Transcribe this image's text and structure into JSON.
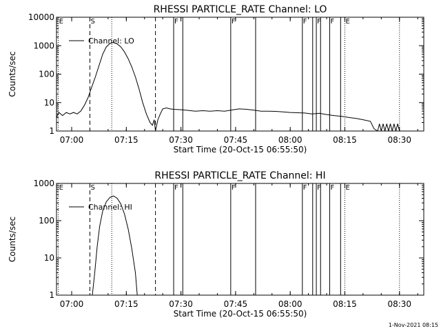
{
  "footer": {
    "date_stamp": "1-Nov-2021 08:15"
  },
  "chart_data": [
    {
      "type": "line",
      "title": "RHESSI PARTICLE_RATE Channel: LO",
      "xlabel": "Start Time (20-Oct-15 06:55:50)",
      "ylabel": "Counts/sec",
      "yscale": "log",
      "xlim": [
        "06:55:50",
        "08:36:40"
      ],
      "ylim": [
        1,
        10000
      ],
      "x_ticks": [
        "07:00",
        "07:15",
        "07:30",
        "07:45",
        "08:00",
        "08:15",
        "08:30"
      ],
      "y_ticks": [
        "1",
        "10",
        "100",
        "1000",
        "10000"
      ],
      "legend": {
        "position": "top-left",
        "label": "Channel: LO"
      },
      "grid": false,
      "markers": [
        {
          "time": "06:56:20",
          "label": "E",
          "style": "dotted"
        },
        {
          "time": "07:05:00",
          "label": "S",
          "style": "dashed"
        },
        {
          "time": "07:11:00",
          "label": "",
          "style": "dotted"
        },
        {
          "time": "07:23:00",
          "label": "",
          "style": "dashed"
        },
        {
          "time": "07:28:00",
          "label": "F",
          "style": "solid"
        },
        {
          "time": "07:30:30",
          "label": "",
          "style": "solid"
        },
        {
          "time": "07:43:40",
          "label": "F",
          "style": "solid"
        },
        {
          "time": "07:50:30",
          "label": "",
          "style": "solid"
        },
        {
          "time": "08:03:20",
          "label": "F",
          "style": "solid"
        },
        {
          "time": "08:06:10",
          "label": "",
          "style": "solid"
        },
        {
          "time": "08:07:10",
          "label": "F",
          "style": "solid"
        },
        {
          "time": "08:08:20",
          "label": "",
          "style": "solid"
        },
        {
          "time": "08:10:50",
          "label": "F",
          "style": "solid"
        },
        {
          "time": "08:13:50",
          "label": "",
          "style": "solid"
        },
        {
          "time": "08:15:00",
          "label": "E",
          "style": "dotted"
        },
        {
          "time": "08:30:00",
          "label": "",
          "style": "dotted"
        }
      ],
      "series": [
        {
          "name": "Channel: LO",
          "points": [
            [
              "06:55:50",
              3
            ],
            [
              "06:56:30",
              4.5
            ],
            [
              "06:57:30",
              3.5
            ],
            [
              "06:58:30",
              4.5
            ],
            [
              "06:59:30",
              4
            ],
            [
              "07:00:30",
              4.5
            ],
            [
              "07:01:30",
              4
            ],
            [
              "07:02:30",
              5
            ],
            [
              "07:03:30",
              8
            ],
            [
              "07:04:30",
              15
            ],
            [
              "07:05:30",
              35
            ],
            [
              "07:06:30",
              80
            ],
            [
              "07:07:30",
              200
            ],
            [
              "07:08:30",
              500
            ],
            [
              "07:09:30",
              900
            ],
            [
              "07:10:30",
              1200
            ],
            [
              "07:11:30",
              1300
            ],
            [
              "07:12:30",
              1150
            ],
            [
              "07:13:30",
              900
            ],
            [
              "07:14:30",
              600
            ],
            [
              "07:15:30",
              350
            ],
            [
              "07:16:30",
              180
            ],
            [
              "07:17:30",
              80
            ],
            [
              "07:18:30",
              30
            ],
            [
              "07:19:30",
              10
            ],
            [
              "07:20:30",
              4
            ],
            [
              "07:21:30",
              2
            ],
            [
              "07:22:10",
              1.6
            ],
            [
              "07:22:40",
              2.5
            ],
            [
              "07:23:00",
              1
            ],
            [
              "07:23:40",
              2.5
            ],
            [
              "07:24:20",
              4
            ],
            [
              "07:25:00",
              6
            ],
            [
              "07:26:00",
              6.5
            ],
            [
              "07:27:00",
              6
            ],
            [
              "07:28:00",
              5.8
            ],
            [
              "07:30:00",
              5.6
            ],
            [
              "07:32:00",
              5.3
            ],
            [
              "07:34:00",
              5.0
            ],
            [
              "07:36:00",
              5.2
            ],
            [
              "07:38:00",
              5.0
            ],
            [
              "07:40:00",
              5.2
            ],
            [
              "07:42:00",
              5.0
            ],
            [
              "07:44:00",
              5.5
            ],
            [
              "07:46:00",
              6.0
            ],
            [
              "07:48:00",
              5.8
            ],
            [
              "07:50:00",
              5.4
            ],
            [
              "07:52:00",
              5.0
            ],
            [
              "07:54:00",
              5.0
            ],
            [
              "07:56:00",
              4.9
            ],
            [
              "07:58:00",
              4.7
            ],
            [
              "08:00:00",
              4.5
            ],
            [
              "08:02:00",
              4.4
            ],
            [
              "08:04:00",
              4.3
            ],
            [
              "08:06:00",
              4.0
            ],
            [
              "08:08:00",
              4.2
            ],
            [
              "08:10:00",
              3.8
            ],
            [
              "08:12:00",
              3.5
            ],
            [
              "08:14:00",
              3.3
            ],
            [
              "08:16:00",
              3.0
            ],
            [
              "08:18:00",
              2.8
            ],
            [
              "08:20:00",
              2.5
            ],
            [
              "08:22:00",
              2.2
            ],
            [
              "08:23:00",
              1.2
            ],
            [
              "08:24:00",
              1.0
            ],
            [
              "08:24:30",
              1.8
            ],
            [
              "08:25:00",
              1.0
            ],
            [
              "08:25:30",
              1.8
            ],
            [
              "08:26:00",
              1.0
            ],
            [
              "08:26:30",
              1.8
            ],
            [
              "08:27:00",
              1.0
            ],
            [
              "08:27:30",
              1.8
            ],
            [
              "08:28:00",
              1.0
            ],
            [
              "08:28:30",
              1.8
            ],
            [
              "08:29:00",
              1.0
            ],
            [
              "08:29:30",
              1.8
            ],
            [
              "08:30:00",
              1.0
            ]
          ]
        }
      ]
    },
    {
      "type": "line",
      "title": "RHESSI PARTICLE_RATE Channel: HI",
      "xlabel": "Start Time (20-Oct-15 06:55:50)",
      "ylabel": "Counts/sec",
      "yscale": "log",
      "xlim": [
        "06:55:50",
        "08:36:40"
      ],
      "ylim": [
        1,
        1000
      ],
      "x_ticks": [
        "07:00",
        "07:15",
        "07:30",
        "07:45",
        "08:00",
        "08:15",
        "08:30"
      ],
      "y_ticks": [
        "1",
        "10",
        "100",
        "1000"
      ],
      "legend": {
        "position": "top-left",
        "label": "Channel: HI"
      },
      "grid": false,
      "markers": [
        {
          "time": "06:56:20",
          "label": "E",
          "style": "dotted"
        },
        {
          "time": "07:05:00",
          "label": "S",
          "style": "dashed"
        },
        {
          "time": "07:11:00",
          "label": "",
          "style": "dotted"
        },
        {
          "time": "07:23:00",
          "label": "",
          "style": "dashed"
        },
        {
          "time": "07:28:00",
          "label": "F",
          "style": "solid"
        },
        {
          "time": "07:30:30",
          "label": "",
          "style": "solid"
        },
        {
          "time": "07:43:40",
          "label": "F",
          "style": "solid"
        },
        {
          "time": "07:50:30",
          "label": "",
          "style": "solid"
        },
        {
          "time": "08:03:20",
          "label": "F",
          "style": "solid"
        },
        {
          "time": "08:06:10",
          "label": "",
          "style": "solid"
        },
        {
          "time": "08:07:10",
          "label": "F",
          "style": "solid"
        },
        {
          "time": "08:08:20",
          "label": "",
          "style": "solid"
        },
        {
          "time": "08:10:50",
          "label": "F",
          "style": "solid"
        },
        {
          "time": "08:13:50",
          "label": "",
          "style": "solid"
        },
        {
          "time": "08:15:00",
          "label": "E",
          "style": "dotted"
        },
        {
          "time": "08:30:00",
          "label": "",
          "style": "dotted"
        }
      ],
      "series": [
        {
          "name": "Channel: HI",
          "points": [
            [
              "07:05:40",
              1
            ],
            [
              "07:06:20",
              4
            ],
            [
              "07:07:00",
              20
            ],
            [
              "07:07:40",
              70
            ],
            [
              "07:08:30",
              180
            ],
            [
              "07:09:30",
              320
            ],
            [
              "07:10:30",
              420
            ],
            [
              "07:11:30",
              460
            ],
            [
              "07:12:30",
              400
            ],
            [
              "07:13:30",
              280
            ],
            [
              "07:14:30",
              150
            ],
            [
              "07:15:30",
              60
            ],
            [
              "07:16:30",
              18
            ],
            [
              "07:17:30",
              4
            ],
            [
              "07:18:00",
              1
            ]
          ]
        }
      ]
    }
  ]
}
